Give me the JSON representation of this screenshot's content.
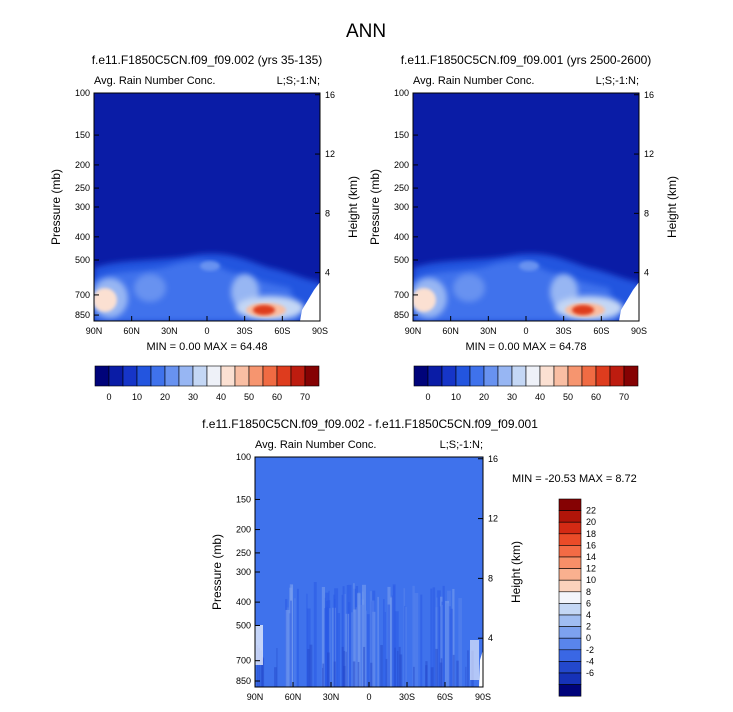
{
  "main_title": "ANN",
  "chart_data": [
    {
      "type": "heatmap",
      "title": "f.e11.F1850C5CN.f09_f09.002 (yrs 35-135)",
      "subtitle_left": "Avg. Rain Number Conc.",
      "subtitle_right": "L;S;-1:N;",
      "xlabel": "",
      "ylabel": "Pressure (mb)",
      "ylabel_right": "Height (km)",
      "x_ticks": [
        "90N",
        "60N",
        "30N",
        "0",
        "30S",
        "60S",
        "90S"
      ],
      "y_ticks": [
        "100",
        "150",
        "200",
        "250",
        "300",
        "400",
        "500",
        "700",
        "850"
      ],
      "y_right_ticks": [
        "16",
        "12",
        "8",
        "4"
      ],
      "stats": "MIN =  0.00  MAX = 64.48",
      "min": 0.0,
      "max": 64.48,
      "features": [
        {
          "x": -70,
          "p": 700,
          "value": 35
        },
        {
          "x": 40,
          "p": 870,
          "value": 62
        },
        {
          "x": -40,
          "p": 720,
          "value": 28
        }
      ]
    },
    {
      "type": "heatmap",
      "title": "f.e11.F1850C5CN.f09_f09.001 (yrs 2500-2600)",
      "subtitle_left": "Avg. Rain Number Conc.",
      "subtitle_right": "L;S;-1:N;",
      "xlabel": "",
      "ylabel": "Pressure (mb)",
      "ylabel_right": "Height (km)",
      "x_ticks": [
        "90N",
        "60N",
        "30N",
        "0",
        "30S",
        "60S",
        "90S"
      ],
      "y_ticks": [
        "100",
        "150",
        "200",
        "250",
        "300",
        "400",
        "500",
        "700",
        "850"
      ],
      "y_right_ticks": [
        "16",
        "12",
        "8",
        "4"
      ],
      "stats": "MIN =  0.00  MAX = 64.78",
      "min": 0.0,
      "max": 64.78,
      "features": [
        {
          "x": -70,
          "p": 700,
          "value": 35
        },
        {
          "x": 40,
          "p": 870,
          "value": 62
        },
        {
          "x": -40,
          "p": 720,
          "value": 28
        }
      ]
    },
    {
      "type": "heatmap",
      "title": "f.e11.F1850C5CN.f09_f09.002 - f.e11.F1850C5CN.f09_f09.001",
      "subtitle_left": "Avg. Rain Number Conc.",
      "subtitle_right": "L;S;-1:N;",
      "xlabel": "",
      "ylabel": "Pressure (mb)",
      "ylabel_right": "Height (km)",
      "x_ticks": [
        "90N",
        "60N",
        "30N",
        "0",
        "30S",
        "60S",
        "90S"
      ],
      "y_ticks": [
        "100",
        "150",
        "200",
        "250",
        "300",
        "400",
        "500",
        "700",
        "850"
      ],
      "y_right_ticks": [
        "16",
        "12",
        "8",
        "4"
      ],
      "stats": "MIN = -20.53  MAX =  8.72",
      "min": -20.53,
      "max": 8.72
    }
  ],
  "colorbar_abs": {
    "labels": [
      "0",
      "10",
      "20",
      "30",
      "40",
      "50",
      "60",
      "70"
    ],
    "colors": [
      "#00037a",
      "#0a1ca6",
      "#1635c8",
      "#2355df",
      "#3f72ec",
      "#6892f0",
      "#97b6f3",
      "#c4d7f5",
      "#eef1f8",
      "#fbe0d2",
      "#f9bea3",
      "#f6956f",
      "#f06b43",
      "#de3c1e",
      "#bd1c0f",
      "#850203"
    ]
  },
  "colorbar_diff": {
    "labels": [
      "22",
      "20",
      "18",
      "16",
      "14",
      "12",
      "10",
      "8",
      "6",
      "4",
      "2",
      "0",
      "-2",
      "-4",
      "-6"
    ],
    "colors": [
      "#850203",
      "#b11509",
      "#d42a14",
      "#ea4b28",
      "#f36b45",
      "#f78f68",
      "#f9b08f",
      "#fbd2bc",
      "#f3f5fb",
      "#c4d7f5",
      "#a0bdf2",
      "#7da2ef",
      "#5985ec",
      "#3a67e4",
      "#2348cc",
      "#1632b8",
      "#00037a"
    ]
  }
}
